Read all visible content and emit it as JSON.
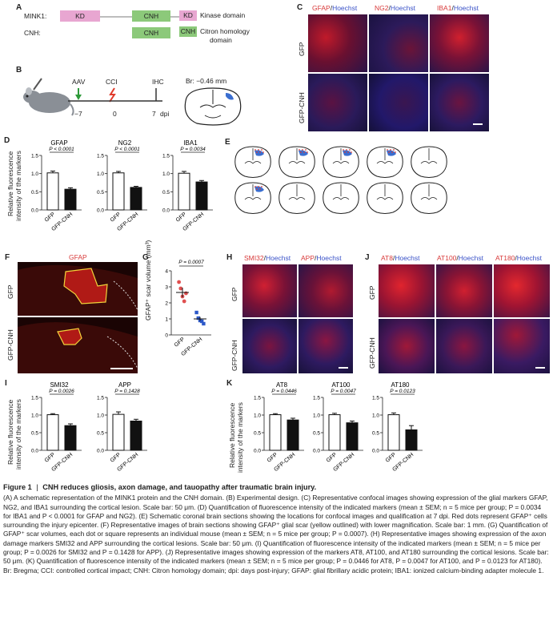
{
  "panels": {
    "A": {
      "letter": "A",
      "row1_label": "MINK1:",
      "row2_label": "CNH:",
      "kd": "KD",
      "cnh": "CNH",
      "legend_kd": "Kinase domain",
      "legend_cnh_line1": "Citron homology",
      "legend_cnh_line2": "domain",
      "colors": {
        "kd": "#e8a6d1",
        "cnh": "#8cc97a",
        "line": "#bdbdbd"
      }
    },
    "B": {
      "letter": "B",
      "aav": "AAV",
      "cci": "CCI",
      "ihc": "IHC",
      "t_aav": "−7",
      "t_cci": "0",
      "t_ihc": "7",
      "dpi": "dpi",
      "bregma": "Br: −0.46 mm"
    },
    "C": {
      "letter": "C",
      "headers": [
        {
          "marker": "GFAP",
          "sep": "/",
          "stain": "Hoechst"
        },
        {
          "marker": "NG2",
          "sep": "/",
          "stain": "Hoechst"
        },
        {
          "marker": "IBA1",
          "sep": "/",
          "stain": "Hoechst"
        }
      ],
      "rows": [
        "GFP",
        "GFP-CNH"
      ]
    },
    "D": {
      "letter": "D",
      "ylabel_line1": "Relative fluorescence",
      "ylabel_line2": "intensity of the markers"
    },
    "E": {
      "letter": "E"
    },
    "F": {
      "letter": "F",
      "header": "GFAP",
      "rows": [
        "GFP",
        "GFP-CNH"
      ]
    },
    "G": {
      "letter": "G",
      "ylabel": "GFAP⁺ scar volume (mm³)",
      "p": "P = 0.0007",
      "x": [
        "GFP",
        "GFP-CNH"
      ],
      "yticks": [
        "0",
        "1",
        "2",
        "3",
        "4"
      ]
    },
    "H": {
      "letter": "H",
      "headers": [
        {
          "marker": "SMI32",
          "sep": "/",
          "stain": "Hoechst"
        },
        {
          "marker": "APP",
          "sep": "/",
          "stain": "Hoechst"
        }
      ],
      "rows": [
        "GFP",
        "GFP-CNH"
      ]
    },
    "I": {
      "letter": "I",
      "ylabel_line1": "Relative fluorescence",
      "ylabel_line2": "intensity of the markers"
    },
    "J": {
      "letter": "J",
      "headers": [
        {
          "marker": "AT8",
          "sep": "/",
          "stain": "Hoechst"
        },
        {
          "marker": "AT100",
          "sep": "/",
          "stain": "Hoechst"
        },
        {
          "marker": "AT180",
          "sep": "/",
          "stain": "Hoechst"
        }
      ],
      "rows": [
        "GFP",
        "GFP-CNH"
      ]
    },
    "K": {
      "letter": "K",
      "ylabel_line1": "Relative fluorescence",
      "ylabel_line2": "intensity of the markers"
    }
  },
  "chart_data": [
    {
      "id": "D-GFAP",
      "type": "bar",
      "title": "GFAP",
      "p": "P < 0.0001",
      "categories": [
        "GFP",
        "GFP-CNH"
      ],
      "values": [
        1.02,
        0.57
      ],
      "errors": [
        0.05,
        0.04
      ],
      "ylim": [
        0,
        1.5
      ],
      "yticks": [
        "0.0",
        "0.5",
        "1.0",
        "1.5"
      ]
    },
    {
      "id": "D-NG2",
      "type": "bar",
      "title": "NG2",
      "p": "P < 0.0001",
      "categories": [
        "GFP",
        "GFP-CNH"
      ],
      "values": [
        1.02,
        0.62
      ],
      "errors": [
        0.04,
        0.03
      ],
      "ylim": [
        0,
        1.5
      ],
      "yticks": [
        "0.0",
        "0.5",
        "1.0",
        "1.5"
      ]
    },
    {
      "id": "D-IBA1",
      "type": "bar",
      "title": "IBA1",
      "p": "P = 0.0034",
      "categories": [
        "GFP",
        "GFP-CNH"
      ],
      "values": [
        1.01,
        0.77
      ],
      "errors": [
        0.05,
        0.04
      ],
      "ylim": [
        0,
        1.5
      ],
      "yticks": [
        "0.0",
        "0.5",
        "1.0",
        "1.5"
      ]
    },
    {
      "id": "I-SMI32",
      "type": "bar",
      "title": "SMI32",
      "p": "P = 0.0026",
      "categories": [
        "GFP",
        "GFP-CNH"
      ],
      "values": [
        1.01,
        0.7
      ],
      "errors": [
        0.03,
        0.05
      ],
      "ylim": [
        0,
        1.5
      ],
      "yticks": [
        "0.0",
        "0.5",
        "1.0",
        "1.5"
      ]
    },
    {
      "id": "I-APP",
      "type": "bar",
      "title": "APP",
      "p": "P = 0.1428",
      "categories": [
        "GFP",
        "GFP-CNH"
      ],
      "values": [
        1.02,
        0.83
      ],
      "errors": [
        0.07,
        0.05
      ],
      "ylim": [
        0,
        1.5
      ],
      "yticks": [
        "0.0",
        "0.5",
        "1.0",
        "1.5"
      ]
    },
    {
      "id": "K-AT8",
      "type": "bar",
      "title": "AT8",
      "p": "P = 0.0446",
      "categories": [
        "GFP",
        "GFP-CNH"
      ],
      "values": [
        1.01,
        0.86
      ],
      "errors": [
        0.03,
        0.05
      ],
      "ylim": [
        0,
        1.5
      ],
      "yticks": [
        "0.0",
        "0.5",
        "1.0",
        "1.5"
      ]
    },
    {
      "id": "K-AT100",
      "type": "bar",
      "title": "AT100",
      "p": "P = 0.0047",
      "categories": [
        "GFP",
        "GFP-CNH"
      ],
      "values": [
        1.01,
        0.78
      ],
      "errors": [
        0.04,
        0.05
      ],
      "ylim": [
        0,
        1.5
      ],
      "yticks": [
        "0.0",
        "0.5",
        "1.0",
        "1.5"
      ]
    },
    {
      "id": "K-AT180",
      "type": "bar",
      "title": "AT180",
      "p": "P = 0.0123",
      "categories": [
        "GFP",
        "GFP-CNH"
      ],
      "values": [
        1.01,
        0.58
      ],
      "errors": [
        0.05,
        0.12
      ],
      "ylim": [
        0,
        1.5
      ],
      "yticks": [
        "0.0",
        "0.5",
        "1.0",
        "1.5"
      ]
    },
    {
      "id": "G",
      "type": "scatter",
      "title": "",
      "p": "P = 0.0007",
      "categories": [
        "GFP",
        "GFP-CNH"
      ],
      "points": [
        [
          3.3,
          2.9,
          2.4,
          2.1,
          2.6
        ],
        [
          1.4,
          1.05,
          0.9,
          0.85,
          0.7
        ]
      ],
      "means": [
        2.65,
        1.0
      ],
      "sems": [
        0.3,
        0.12
      ],
      "ylim": [
        0,
        4
      ],
      "colors": [
        "#e05050",
        "#2c58c8"
      ]
    }
  ],
  "caption": {
    "title_prefix": "Figure 1",
    "title_sep": "|",
    "title": "CNH reduces gliosis, axon damage, and tauopathy after traumatic brain injury.",
    "body": "(A) A schematic representation of the MINK1 protein and the CNH domain. (B) Experimental design. (C) Representative confocal images showing expression of the glial markers GFAP, NG2, and IBA1 surrounding the cortical lesion. Scale bar: 50 μm. (D) Quantification of fluorescence intensity of the indicated markers (mean ± SEM; n = 5 mice per group; P = 0.0034 for IBA1 and P < 0.0001 for GFAP and NG2). (E) Schematic coronal brain sections showing the locations for confocal images and qualification at 7 dpi. Red dots represent GFAP⁺ cells surrounding the injury epicenter. (F) Representative images of brain sections showing GFAP⁺ glial scar (yellow outlined) with lower magnification. Scale bar: 1 mm. (G) Quantification of GFAP⁺ scar volumes, each dot or square represents an individual mouse (mean ± SEM; n = 5 mice per group; P = 0.0007). (H) Representative images showing expression of the axon damage markers SMI32 and APP surrounding the cortical lesions. Scale bar: 50 μm. (I) Quantification of fluorescence intensity of the indicated markers (mean ± SEM; n = 5 mice per group; P = 0.0026 for SMI32 and P = 0.1428 for APP). (J) Representative images showing expression of the markers AT8, AT100, and AT180 surrounding the cortical lesions. Scale bar: 50 μm. (K) Quantification of fluorescence intensity of the indicated markers (mean ± SEM; n = 5 mice per group; P = 0.0446 for AT8, P = 0.0047 for AT100, and P = 0.0123 for AT180). Br: Bregma; CCI: controlled cortical impact; CNH: Citron homology domain; dpi: days post-injury; GFAP: glial fibrillary acidic protein; IBA1: ionized calcium-binding adapter molecule 1."
  },
  "colors": {
    "red": "#d83a3a",
    "blue": "#3a52c8",
    "bar": "#111111",
    "outline": "#f2d33a"
  }
}
